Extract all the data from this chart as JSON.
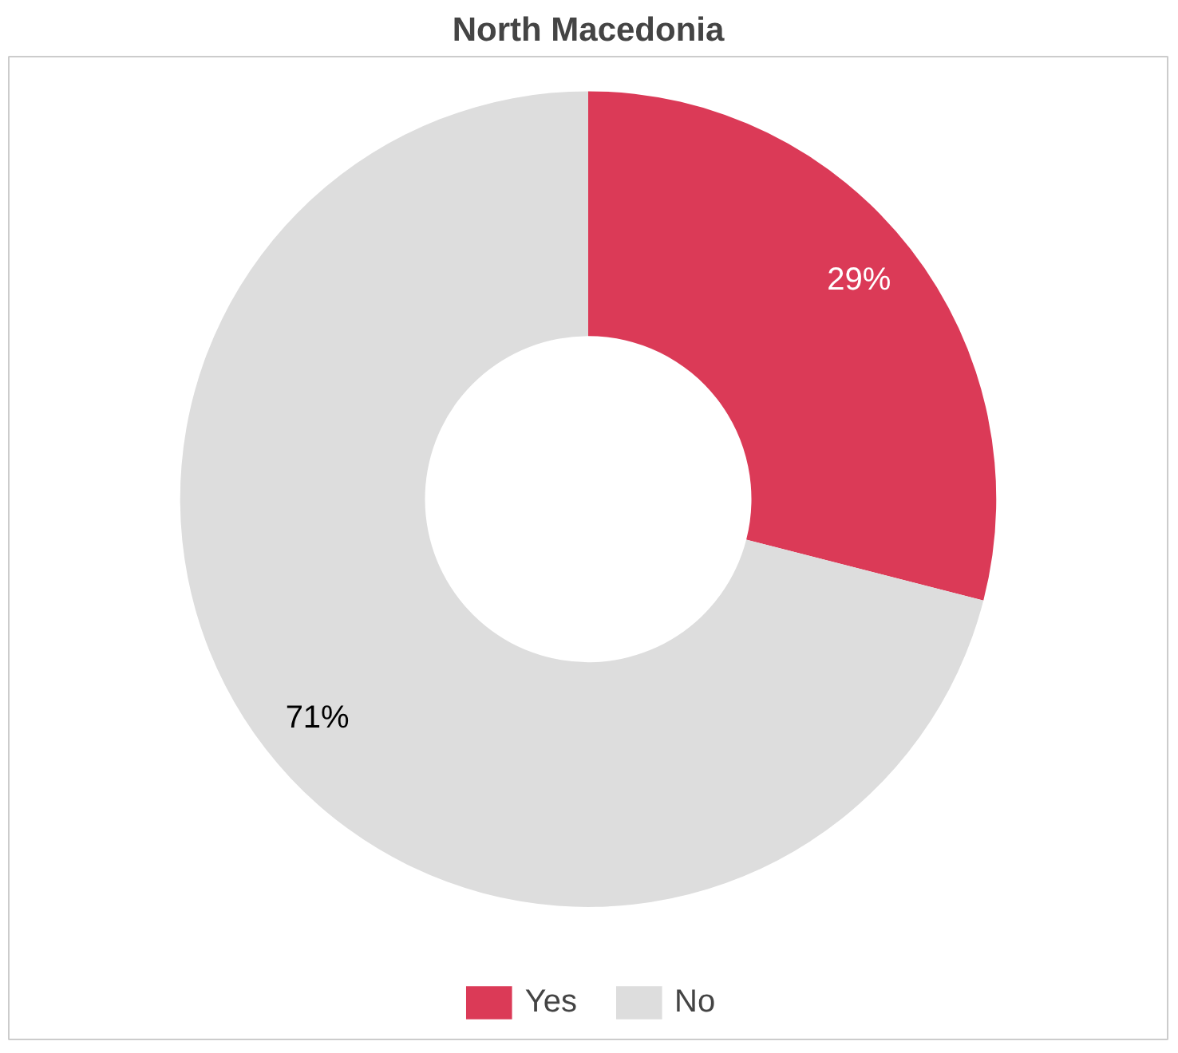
{
  "chart_data": {
    "type": "donut",
    "title": "North Macedonia",
    "categories": [
      "Yes",
      "No"
    ],
    "values": [
      29,
      71
    ],
    "colors": [
      "#db3a57",
      "#dddddd"
    ],
    "value_labels": [
      "29%",
      "71%"
    ],
    "legend": "bottom"
  }
}
